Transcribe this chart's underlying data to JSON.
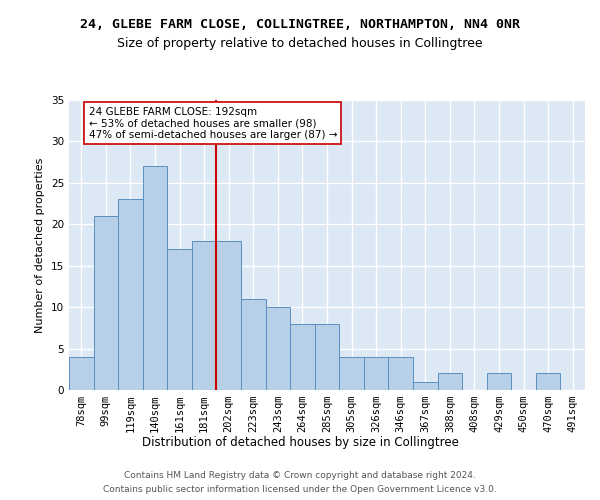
{
  "title1": "24, GLEBE FARM CLOSE, COLLINGTREE, NORTHAMPTON, NN4 0NR",
  "title2": "Size of property relative to detached houses in Collingtree",
  "xlabel": "Distribution of detached houses by size in Collingtree",
  "ylabel": "Number of detached properties",
  "bar_labels": [
    "78sqm",
    "99sqm",
    "119sqm",
    "140sqm",
    "161sqm",
    "181sqm",
    "202sqm",
    "223sqm",
    "243sqm",
    "264sqm",
    "285sqm",
    "305sqm",
    "326sqm",
    "346sqm",
    "367sqm",
    "388sqm",
    "408sqm",
    "429sqm",
    "450sqm",
    "470sqm",
    "491sqm"
  ],
  "bar_values": [
    4,
    21,
    23,
    27,
    17,
    18,
    18,
    11,
    10,
    8,
    8,
    4,
    4,
    4,
    1,
    2,
    0,
    2,
    0,
    2,
    0
  ],
  "bar_color": "#b8cfe8",
  "bar_edgecolor": "#5a8fc0",
  "vline_x": 5.5,
  "vline_color": "#cc0000",
  "annotation_text": "24 GLEBE FARM CLOSE: 192sqm\n← 53% of detached houses are smaller (98)\n47% of semi-detached houses are larger (87) →",
  "annotation_box_color": "#ffffff",
  "annotation_box_edgecolor": "#cc0000",
  "ylim": [
    0,
    35
  ],
  "yticks": [
    0,
    5,
    10,
    15,
    20,
    25,
    30,
    35
  ],
  "footer1": "Contains HM Land Registry data © Crown copyright and database right 2024.",
  "footer2": "Contains public sector information licensed under the Open Government Licence v3.0.",
  "bg_color": "#dde8f5",
  "grid_color": "#ffffff",
  "title1_fontsize": 9.5,
  "title2_fontsize": 9,
  "xlabel_fontsize": 8.5,
  "ylabel_fontsize": 8,
  "tick_fontsize": 7.5,
  "footer_fontsize": 6.5,
  "annot_fontsize": 7.5
}
